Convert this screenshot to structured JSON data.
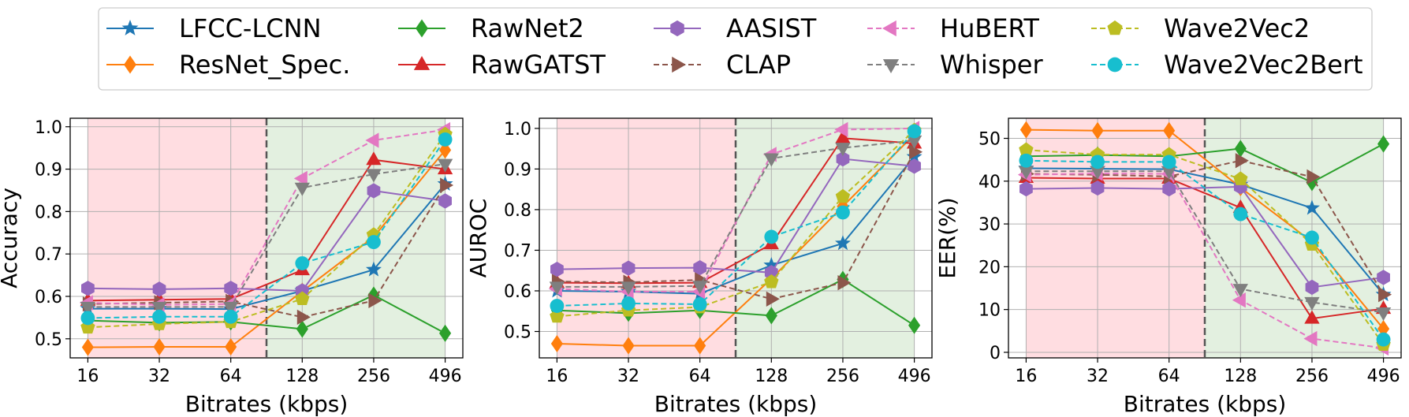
{
  "legend": {
    "placement": "top-center",
    "entries": [
      {
        "name": "LFCC-LCNN",
        "color": "#1f77b4",
        "marker": "star",
        "dash": "solid"
      },
      {
        "name": "RawNet2",
        "color": "#2ca02c",
        "marker": "diamond",
        "dash": "solid"
      },
      {
        "name": "AASIST",
        "color": "#9467bd",
        "marker": "hexagon",
        "dash": "solid"
      },
      {
        "name": "HuBERT",
        "color": "#e377c2",
        "marker": "triangle-left",
        "dash": "dashed"
      },
      {
        "name": "Wave2Vec2",
        "color": "#bcbd22",
        "marker": "pentagon",
        "dash": "dashed"
      },
      {
        "name": "ResNet_Spec.",
        "color": "#ff7f0e",
        "marker": "diamond",
        "dash": "solid"
      },
      {
        "name": "RawGATST",
        "color": "#d62728",
        "marker": "triangle-up",
        "dash": "solid"
      },
      {
        "name": "CLAP",
        "color": "#8c564b",
        "marker": "triangle-right",
        "dash": "dashed"
      },
      {
        "name": "Whisper",
        "color": "#7f7f7f",
        "marker": "triangle-down",
        "dash": "dashed"
      },
      {
        "name": "Wave2Vec2Bert",
        "color": "#17becf",
        "marker": "circle",
        "dash": "dashed"
      }
    ]
  },
  "chart_data": [
    {
      "type": "line",
      "title": "",
      "xlabel": "Bitrates (kbps)",
      "ylabel": "Accuracy",
      "categories": [
        "16",
        "32",
        "64",
        "128",
        "256",
        "496"
      ],
      "ylim": [
        0.455,
        1.02
      ],
      "yticks": [
        0.5,
        0.6,
        0.7,
        0.8,
        0.9,
        1.0
      ],
      "ytick_labels": [
        "0.5",
        "0.6",
        "0.7",
        "0.8",
        "0.9",
        "1.0"
      ],
      "grid": true,
      "split_after_category": "64",
      "series": [
        {
          "name": "LFCC-LCNN",
          "values": [
            0.571,
            0.571,
            0.57,
            0.613,
            0.663,
            0.865
          ]
        },
        {
          "name": "ResNet_Spec.",
          "values": [
            0.48,
            0.481,
            0.481,
            0.612,
            0.74,
            0.945
          ]
        },
        {
          "name": "RawNet2",
          "values": [
            0.543,
            0.538,
            0.54,
            0.523,
            0.603,
            0.513
          ]
        },
        {
          "name": "RawGATST",
          "values": [
            0.59,
            0.592,
            0.594,
            0.662,
            0.922,
            0.9
          ]
        },
        {
          "name": "AASIST",
          "values": [
            0.619,
            0.617,
            0.619,
            0.613,
            0.849,
            0.825
          ]
        },
        {
          "name": "CLAP",
          "values": [
            0.582,
            0.585,
            0.588,
            0.551,
            0.59,
            0.862
          ]
        },
        {
          "name": "HuBERT",
          "values": [
            0.585,
            0.58,
            0.582,
            0.878,
            0.968,
            0.993
          ]
        },
        {
          "name": "Whisper",
          "values": [
            0.575,
            0.575,
            0.575,
            0.856,
            0.888,
            0.912
          ]
        },
        {
          "name": "Wave2Vec2",
          "values": [
            0.527,
            0.535,
            0.54,
            0.594,
            0.745,
            0.982
          ]
        },
        {
          "name": "Wave2Vec2Bert",
          "values": [
            0.549,
            0.552,
            0.552,
            0.678,
            0.728,
            0.97
          ]
        }
      ]
    },
    {
      "type": "line",
      "title": "",
      "xlabel": "Bitrates (kbps)",
      "ylabel": "AUROC",
      "categories": [
        "16",
        "32",
        "64",
        "128",
        "256",
        "496"
      ],
      "ylim": [
        0.435,
        1.025
      ],
      "yticks": [
        0.5,
        0.6,
        0.7,
        0.8,
        0.9,
        1.0
      ],
      "ytick_labels": [
        "0.5",
        "0.6",
        "0.7",
        "0.8",
        "0.9",
        "1.0"
      ],
      "grid": true,
      "split_after_category": "64",
      "series": [
        {
          "name": "LFCC-LCNN",
          "values": [
            0.6,
            0.598,
            0.593,
            0.663,
            0.717,
            0.93
          ]
        },
        {
          "name": "ResNet_Spec.",
          "values": [
            0.47,
            0.465,
            0.465,
            0.63,
            0.808,
            0.985
          ]
        },
        {
          "name": "RawNet2",
          "values": [
            0.552,
            0.545,
            0.552,
            0.539,
            0.628,
            0.515
          ]
        },
        {
          "name": "RawGATST",
          "values": [
            0.62,
            0.619,
            0.62,
            0.715,
            0.976,
            0.963
          ]
        },
        {
          "name": "AASIST",
          "values": [
            0.653,
            0.656,
            0.657,
            0.645,
            0.925,
            0.907
          ]
        },
        {
          "name": "CLAP",
          "values": [
            0.623,
            0.621,
            0.627,
            0.58,
            0.62,
            0.942
          ]
        },
        {
          "name": "HuBERT",
          "values": [
            0.605,
            0.598,
            0.598,
            0.936,
            0.997,
            1.0
          ]
        },
        {
          "name": "Whisper",
          "values": [
            0.61,
            0.61,
            0.612,
            0.926,
            0.952,
            0.97
          ]
        },
        {
          "name": "Wave2Vec2",
          "values": [
            0.537,
            0.552,
            0.56,
            0.622,
            0.832,
            0.995
          ]
        },
        {
          "name": "Wave2Vec2Bert",
          "values": [
            0.563,
            0.569,
            0.567,
            0.733,
            0.793,
            0.993
          ]
        }
      ]
    },
    {
      "type": "line",
      "title": "",
      "xlabel": "Bitrates (kbps)",
      "ylabel": "EER(%)",
      "categories": [
        "16",
        "32",
        "64",
        "128",
        "256",
        "496"
      ],
      "ylim": [
        -1.3,
        54.7
      ],
      "yticks": [
        0,
        10,
        20,
        30,
        40,
        50
      ],
      "ytick_labels": [
        "0",
        "10",
        "20",
        "30",
        "40",
        "50"
      ],
      "grid": true,
      "split_after_category": "64",
      "series": [
        {
          "name": "LFCC-LCNN",
          "values": [
            43.0,
            42.9,
            42.8,
            39.2,
            33.7,
            13.5
          ]
        },
        {
          "name": "ResNet_Spec.",
          "values": [
            52.0,
            51.8,
            51.8,
            38.5,
            25.8,
            5.5
          ]
        },
        {
          "name": "RawNet2",
          "values": [
            45.8,
            46.1,
            45.8,
            47.6,
            39.7,
            48.7
          ]
        },
        {
          "name": "RawGATST",
          "values": [
            40.8,
            40.6,
            40.6,
            33.8,
            7.9,
            10.2
          ]
        },
        {
          "name": "AASIST",
          "values": [
            38.2,
            38.4,
            38.2,
            38.7,
            15.2,
            17.5
          ]
        },
        {
          "name": "CLAP",
          "values": [
            41.7,
            41.5,
            41.1,
            44.8,
            41.0,
            13.5
          ]
        },
        {
          "name": "HuBERT",
          "values": [
            41.5,
            41.8,
            41.7,
            12.2,
            3.2,
            1.0
          ]
        },
        {
          "name": "Whisper",
          "values": [
            42.3,
            42.3,
            42.3,
            14.8,
            11.7,
            9.3
          ]
        },
        {
          "name": "Wave2Vec2",
          "values": [
            47.3,
            46.2,
            46.2,
            40.5,
            25.2,
            1.8
          ]
        },
        {
          "name": "Wave2Vec2Bert",
          "values": [
            44.8,
            44.5,
            44.5,
            32.3,
            26.8,
            3.0
          ]
        }
      ]
    }
  ]
}
